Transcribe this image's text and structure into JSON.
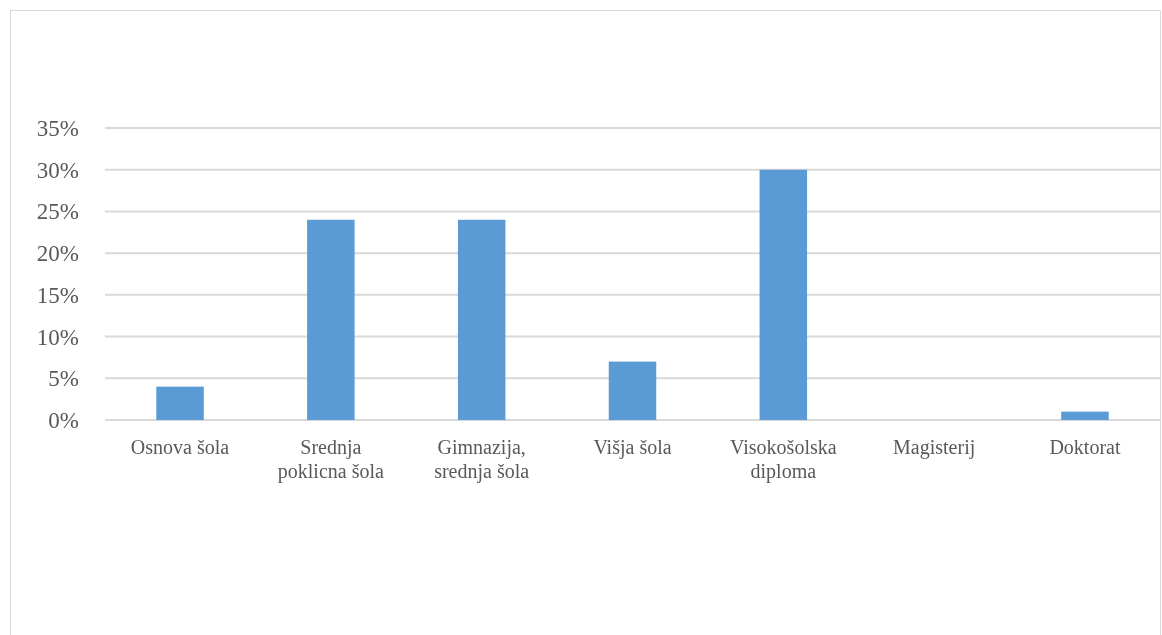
{
  "chart_data": {
    "type": "bar",
    "categories": [
      "Osnova šola",
      "Srednja poklicna šola",
      "Gimnazija, srednja šola",
      "Višja šola",
      "Visokošolska diploma",
      "Magisterij",
      "Doktorat"
    ],
    "values": [
      4,
      24,
      24,
      7,
      30,
      0,
      1
    ],
    "color": "#5b9bd5",
    "ylim": [
      0,
      35
    ],
    "yticks": [
      {
        "value": 0,
        "label": "0%"
      },
      {
        "value": 5,
        "label": "5%"
      },
      {
        "value": 10,
        "label": "10%"
      },
      {
        "value": 15,
        "label": "15%"
      },
      {
        "value": 20,
        "label": "20%"
      },
      {
        "value": 25,
        "label": "25%"
      },
      {
        "value": 30,
        "label": "30%"
      },
      {
        "value": 35,
        "label": "35%"
      }
    ],
    "grid": "y"
  }
}
